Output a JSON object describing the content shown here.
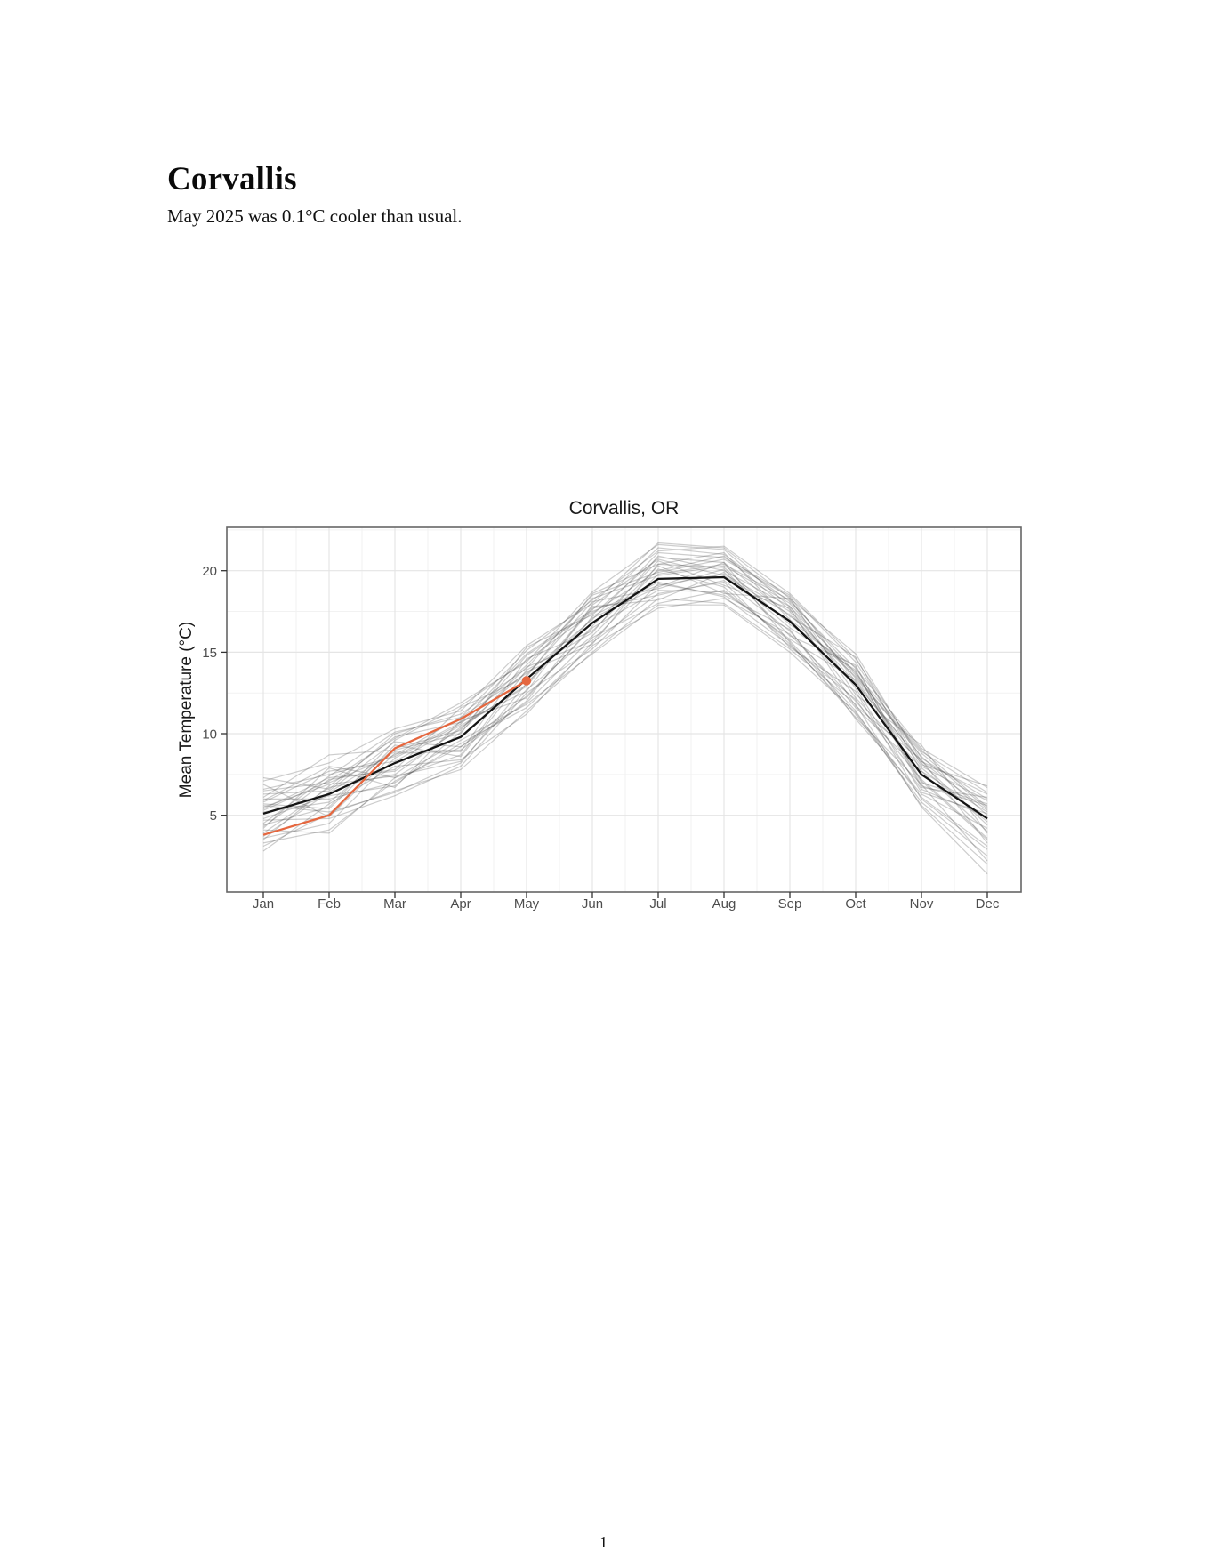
{
  "page": {
    "title": "Corvallis",
    "subtitle": "May 2025 was 0.1°C cooler than usual.",
    "page_number": "1"
  },
  "chart_data": {
    "type": "line",
    "title": "Corvallis, OR",
    "xlabel": "",
    "ylabel": "Mean Temperature (°C)",
    "categories": [
      "Jan",
      "Feb",
      "Mar",
      "Apr",
      "May",
      "Jun",
      "Jul",
      "Aug",
      "Sep",
      "Oct",
      "Nov",
      "Dec"
    ],
    "yticks": [
      5,
      10,
      15,
      20
    ],
    "ylim": [
      0.3,
      22.7
    ],
    "grid": "major+minor",
    "legend": "none",
    "colors": {
      "mean_line": "#141414",
      "history_line": "#464646",
      "history_opacity": 0.27,
      "current_line": "#E5673F",
      "grid_major": "#E5E5E5",
      "grid_minor": "#F2F2F2",
      "panel_border": "#666666",
      "tick": "#333333",
      "axis_text": "#4d4d4d"
    },
    "series": [
      {
        "name": "climatological-mean",
        "role": "mean",
        "values": [
          5.1,
          6.3,
          8.2,
          9.8,
          13.35,
          16.8,
          19.5,
          19.6,
          16.9,
          13.0,
          7.5,
          4.8
        ]
      },
      {
        "name": "2025",
        "role": "current",
        "end_marker": true,
        "values": [
          3.8,
          5.0,
          9.1,
          10.9,
          13.25
        ]
      },
      {
        "name": "year-01",
        "role": "history",
        "values": [
          6.6,
          7.5,
          8.6,
          10.7,
          14.9,
          17.6,
          21.4,
          21.0,
          18.1,
          14.0,
          9.1,
          6.7
        ]
      },
      {
        "name": "year-02",
        "role": "history",
        "values": [
          3.3,
          4.1,
          7.1,
          9.2,
          11.9,
          15.9,
          18.0,
          18.8,
          15.7,
          11.4,
          5.6,
          2.0
        ]
      },
      {
        "name": "year-03",
        "role": "history",
        "values": [
          5.7,
          5.4,
          9.3,
          8.6,
          13.6,
          18.1,
          18.9,
          20.1,
          16.0,
          14.2,
          6.8,
          5.6
        ]
      },
      {
        "name": "year-04",
        "role": "history",
        "values": [
          4.2,
          7.9,
          6.7,
          10.8,
          12.2,
          16.6,
          20.6,
          19.1,
          17.7,
          11.7,
          8.4,
          3.3
        ]
      },
      {
        "name": "year-05",
        "role": "history",
        "values": [
          7.3,
          6.6,
          10.0,
          11.2,
          14.0,
          18.5,
          19.9,
          20.7,
          18.4,
          13.2,
          8.0,
          5.9
        ]
      },
      {
        "name": "year-06",
        "role": "history",
        "values": [
          4.7,
          4.8,
          6.2,
          8.0,
          12.5,
          15.2,
          19.2,
          18.5,
          16.4,
          10.9,
          6.3,
          4.2
        ]
      },
      {
        "name": "year-07",
        "role": "history",
        "values": [
          6.1,
          8.7,
          9.0,
          10.0,
          15.3,
          17.3,
          20.8,
          20.5,
          17.2,
          14.7,
          7.7,
          5.2
        ]
      },
      {
        "name": "year-08",
        "role": "history",
        "values": [
          2.8,
          5.7,
          8.0,
          8.4,
          11.2,
          15.6,
          18.6,
          19.3,
          15.3,
          12.6,
          6.0,
          2.9
        ]
      },
      {
        "name": "year-09",
        "role": "history",
        "values": [
          5.3,
          7.1,
          9.7,
          11.9,
          14.4,
          18.7,
          21.6,
          21.3,
          17.8,
          13.6,
          8.6,
          5.0
        ]
      },
      {
        "name": "year-10",
        "role": "history",
        "values": [
          3.9,
          6.7,
          7.5,
          10.4,
          13.0,
          17.8,
          18.2,
          19.9,
          16.5,
          13.9,
          6.7,
          6.1
        ]
      },
      {
        "name": "year-11",
        "role": "history",
        "values": [
          6.9,
          4.9,
          8.8,
          8.9,
          14.6,
          16.3,
          20.3,
          18.6,
          18.3,
          12.4,
          9.3,
          3.9
        ]
      },
      {
        "name": "year-12",
        "role": "history",
        "values": [
          4.5,
          7.4,
          10.1,
          11.0,
          13.7,
          17.0,
          21.1,
          20.8,
          18.5,
          14.4,
          8.1,
          6.8
        ]
      },
      {
        "name": "year-13",
        "role": "history",
        "values": [
          6.0,
          6.0,
          7.0,
          9.4,
          11.6,
          15.4,
          17.7,
          18.3,
          16.1,
          12.0,
          7.2,
          3.6
        ]
      },
      {
        "name": "year-14",
        "role": "history",
        "values": [
          3.6,
          4.5,
          8.5,
          10.6,
          14.2,
          18.3,
          19.7,
          20.3,
          18.0,
          13.4,
          8.8,
          5.4
        ]
      },
      {
        "name": "year-15",
        "role": "history",
        "values": [
          5.5,
          6.9,
          7.4,
          8.3,
          12.7,
          16.0,
          20.1,
          19.0,
          15.5,
          11.2,
          5.8,
          2.5
        ]
      },
      {
        "name": "year-16",
        "role": "history",
        "values": [
          7.1,
          8.2,
          10.3,
          11.4,
          15.4,
          18.0,
          21.7,
          21.4,
          18.3,
          14.9,
          8.3,
          6.3
        ]
      },
      {
        "name": "year-17",
        "role": "history",
        "values": [
          3.1,
          5.1,
          6.5,
          7.8,
          11.4,
          15.0,
          18.3,
          18.0,
          15.2,
          11.8,
          5.5,
          1.4
        ]
      },
      {
        "name": "year-18",
        "role": "history",
        "values": [
          5.2,
          5.8,
          9.1,
          10.2,
          14.8,
          17.5,
          19.1,
          19.8,
          17.5,
          12.2,
          7.9,
          4.6
        ]
      },
      {
        "name": "year-19",
        "role": "history",
        "values": [
          4.3,
          7.2,
          7.8,
          11.6,
          13.5,
          18.6,
          20.4,
          21.1,
          17.0,
          13.8,
          7.0,
          5.7
        ]
      },
      {
        "name": "year-20",
        "role": "history",
        "values": [
          6.3,
          6.5,
          9.5,
          9.2,
          12.3,
          16.5,
          18.8,
          18.7,
          15.8,
          13.3,
          8.2,
          4.4
        ]
      },
      {
        "name": "year-21",
        "role": "history",
        "values": [
          4.1,
          3.9,
          7.3,
          8.7,
          13.9,
          16.2,
          20.9,
          20.0,
          17.8,
          12.8,
          6.4,
          5.1
        ]
      },
      {
        "name": "year-22",
        "role": "history",
        "values": [
          5.8,
          7.7,
          8.3,
          10.5,
          12.9,
          17.7,
          18.5,
          19.4,
          16.3,
          11.6,
          7.7,
          4.0
        ]
      },
      {
        "name": "year-23",
        "role": "history",
        "values": [
          4.8,
          6.2,
          6.8,
          10.1,
          14.1,
          15.7,
          19.8,
          20.4,
          18.2,
          13.7,
          9.0,
          5.5
        ]
      },
      {
        "name": "year-24",
        "role": "history",
        "values": [
          6.5,
          7.0,
          8.7,
          11.0,
          15.1,
          18.2,
          21.2,
          21.5,
          18.6,
          14.6,
          8.5,
          6.0
        ]
      },
      {
        "name": "year-25",
        "role": "history",
        "values": [
          3.7,
          6.4,
          8.9,
          9.0,
          12.0,
          17.2,
          19.3,
          18.4,
          15.4,
          12.1,
          6.6,
          4.9
        ]
      },
      {
        "name": "year-26",
        "role": "history",
        "values": [
          5.4,
          7.3,
          7.7,
          10.3,
          13.8,
          15.5,
          20.4,
          20.2,
          16.7,
          14.1,
          7.1,
          3.5
        ]
      },
      {
        "name": "year-27",
        "role": "history",
        "values": [
          4.4,
          5.5,
          9.6,
          11.7,
          14.5,
          17.4,
          20.0,
          20.9,
          17.6,
          13.1,
          8.3,
          5.3
        ]
      },
      {
        "name": "year-28",
        "role": "history",
        "values": [
          5.9,
          8.0,
          7.3,
          9.6,
          11.8,
          14.9,
          17.9,
          17.9,
          15.0,
          11.3,
          6.1,
          3.1
        ]
      },
      {
        "name": "year-29",
        "role": "history",
        "values": [
          3.5,
          6.8,
          9.8,
          10.7,
          12.6,
          17.9,
          20.7,
          19.7,
          17.3,
          13.5,
          8.9,
          6.4
        ]
      },
      {
        "name": "year-30",
        "role": "history",
        "values": [
          5.6,
          5.2,
          6.4,
          8.2,
          13.1,
          17.1,
          19.0,
          20.5,
          15.6,
          11.0,
          6.9,
          2.2
        ]
      }
    ]
  }
}
